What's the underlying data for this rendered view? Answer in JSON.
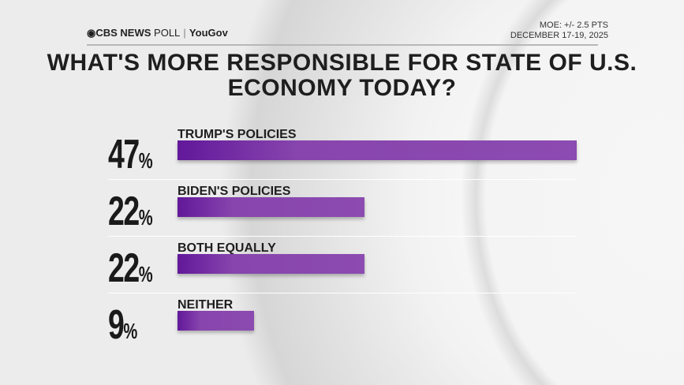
{
  "header": {
    "brand": "CBS NEWS",
    "poll": "POLL",
    "partner": "YouGov",
    "moe": "MOE: +/- 2.5 PTS",
    "dates": "DECEMBER 17-19, 2025"
  },
  "chart_data": {
    "type": "bar",
    "orientation": "horizontal",
    "title": "WHAT'S MORE RESPONSIBLE FOR STATE OF U.S. ECONOMY TODAY?",
    "categories": [
      "TRUMP'S POLICIES",
      "BIDEN'S POLICIES",
      "BOTH EQUALLY",
      "NEITHER"
    ],
    "values": [
      47,
      22,
      22,
      9
    ],
    "value_labels": [
      "47",
      "22",
      "22",
      "9"
    ],
    "unit": "%",
    "bar_color": "#8c4bb0",
    "grid": false,
    "legend": "none"
  }
}
